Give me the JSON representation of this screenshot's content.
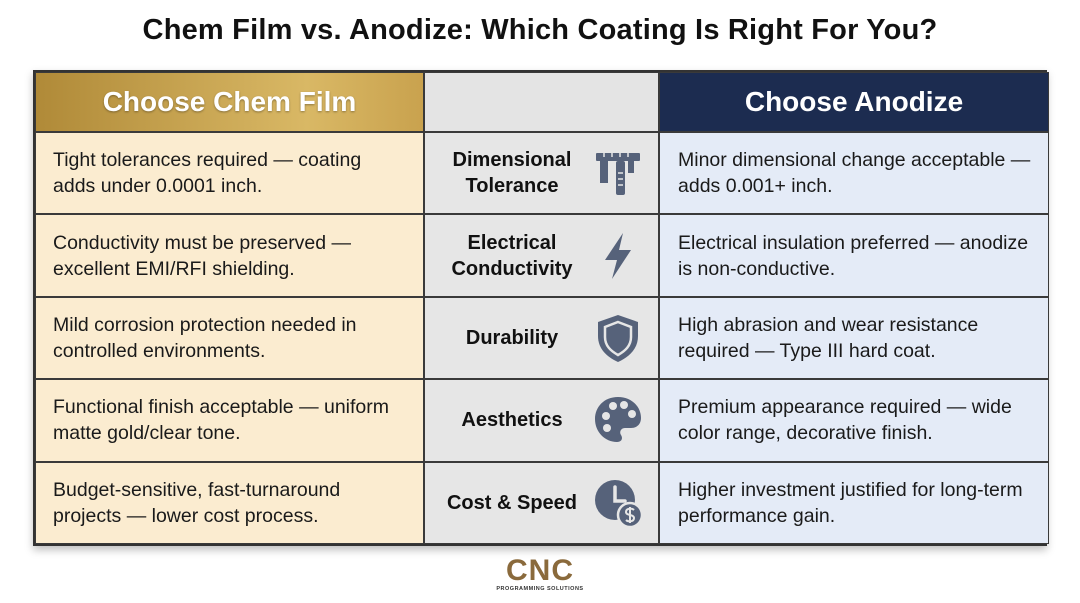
{
  "header": {
    "title": "Chem Film vs. Anodize: Which Coating Is Right For You?"
  },
  "table": {
    "headers": {
      "left": "Choose Chem Film",
      "right": "Choose Anodize"
    },
    "rows": [
      {
        "left": "Tight tolerances required — coating adds under 0.0001 inch.",
        "criterion": "Dimensional Tolerance",
        "right": "Minor dimensional change acceptable — adds 0.001+ inch."
      },
      {
        "left": "Conductivity must be preserved — excellent EMI/RFI shielding.",
        "criterion": "Electrical Conductivity",
        "right": "Electrical insulation preferred — anodize is non-conductive."
      },
      {
        "left": "Mild corrosion protection needed in controlled environments.",
        "criterion": "Durability",
        "right": "High abrasion and wear resistance required — Type III hard coat."
      },
      {
        "left": "Functional finish acceptable — uniform matte gold/clear tone.",
        "criterion": "Aesthetics",
        "right": "Premium appearance required — wide color range, decorative finish."
      },
      {
        "left": "Budget-sensitive, fast-turnaround projects — lower cost process.",
        "criterion": "Cost & Speed",
        "right": "Higher investment justified for long-term performance gain."
      }
    ]
  },
  "footer": {
    "logo": "CNC",
    "tagline": "PROGRAMMING SOLUTIONS"
  }
}
